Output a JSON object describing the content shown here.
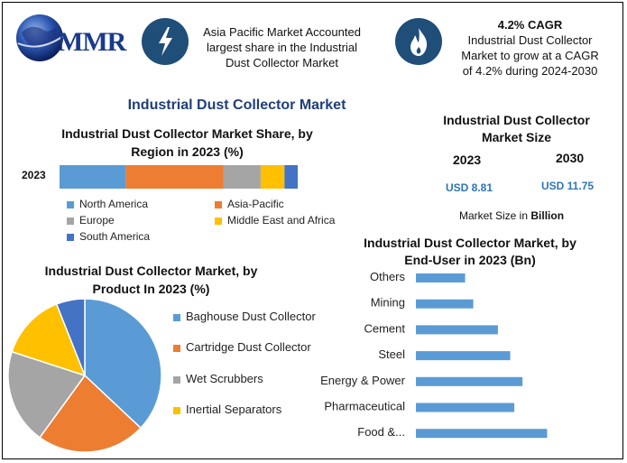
{
  "header": {
    "logo_text": "MMR",
    "info1": [
      "Asia Pacific Market Accounted",
      "largest share in the Industrial",
      "Dust Collector Market"
    ],
    "info2_title": "4.2% CAGR",
    "info2": [
      "Industrial Dust Collector",
      "Market to grow at a CAGR",
      "of 4.2% during 2024-2030"
    ],
    "colors": {
      "icon_bg": "#1f4e79",
      "logo": "#1b3a8c"
    }
  },
  "main_title": "Industrial Dust Collector Market",
  "market_size": {
    "title_line1": "Industrial Dust Collector",
    "title_line2": "Market Size",
    "year1": "2023",
    "year2": "2030",
    "value1": "USD 8.81",
    "value2": "USD 11.75",
    "note_prefix": "Market Size in ",
    "note_bold": "Billion"
  },
  "chart_data": [
    {
      "type": "bar",
      "orientation": "horizontal-stacked",
      "title": "Industrial Dust Collector Market Share, by Region in 2023 (%)",
      "title_line1": "Industrial Dust Collector Market Share, by",
      "title_line2": "Region in 2023 (%)",
      "categories": [
        "2023"
      ],
      "series": [
        {
          "name": "North America",
          "values": [
            25
          ],
          "color": "#5b9bd5"
        },
        {
          "name": "Asia-Pacific",
          "values": [
            37
          ],
          "color": "#ed7d31"
        },
        {
          "name": "Europe",
          "values": [
            14
          ],
          "color": "#a5a5a5"
        },
        {
          "name": "Middle East and Africa",
          "values": [
            9
          ],
          "color": "#ffc000"
        },
        {
          "name": "South America",
          "values": [
            5
          ],
          "color": "#4472c4"
        }
      ],
      "legend_position": "bottom",
      "grid": false
    },
    {
      "type": "pie",
      "title": "Industrial Dust Collector Market, by Product In 2023 (%)",
      "title_line1": "Industrial Dust Collector Market, by",
      "title_line2": "Product In 2023 (%)",
      "categories": [
        "Baghouse Dust Collector",
        "Cartridge Dust Collector",
        "Wet Scrubbers",
        "Inertial Separators",
        ""
      ],
      "values": [
        37,
        23,
        20,
        14,
        6
      ],
      "colors": [
        "#5b9bd5",
        "#ed7d31",
        "#a5a5a5",
        "#ffc000",
        "#4472c4"
      ],
      "legend_position": "right"
    },
    {
      "type": "bar",
      "orientation": "horizontal",
      "title": "Industrial Dust Collector Market, by End-User in 2023 (Bn)",
      "title_line1": "Industrial Dust Collector Market, by",
      "title_line2": "End-User in 2023 (Bn)",
      "categories": [
        "Others",
        "Mining",
        "Cement",
        "Steel",
        "Energy & Power",
        "Pharmaceutical",
        "Food &..."
      ],
      "values": [
        0.6,
        0.7,
        1.0,
        1.15,
        1.3,
        1.2,
        1.6
      ],
      "xlim": [
        0,
        2.2
      ],
      "color": "#5b9bd5",
      "grid": false
    }
  ]
}
